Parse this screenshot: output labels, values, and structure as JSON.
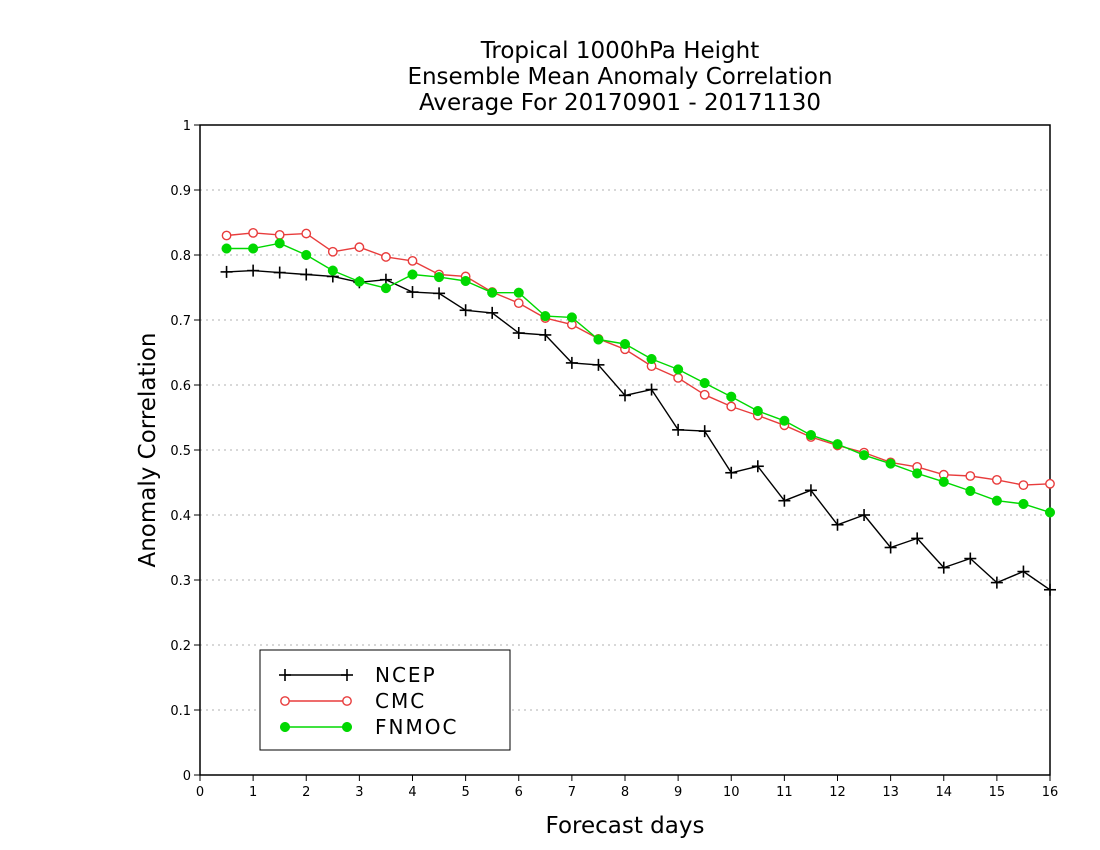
{
  "chart_data": {
    "type": "line",
    "title": [
      "Tropical 1000hPa Height",
      "Ensemble Mean Anomaly Correlation",
      "Average For 20170901 - 20171130"
    ],
    "xlabel": "Forecast days",
    "ylabel": "Anomaly Correlation",
    "xlim": [
      0,
      16
    ],
    "ylim": [
      0,
      1
    ],
    "x_ticks": [
      0,
      1,
      2,
      3,
      4,
      5,
      6,
      7,
      8,
      9,
      10,
      11,
      12,
      13,
      14,
      15,
      16
    ],
    "y_ticks": [
      0,
      0.1,
      0.2,
      0.3,
      0.4,
      0.5,
      0.6,
      0.7,
      0.8,
      0.9,
      1
    ],
    "y_tick_labels": [
      "0",
      "0.1",
      "0.2",
      "0.3",
      "0.4",
      "0.5",
      "0.6",
      "0.7",
      "0.8",
      "0.9",
      "1"
    ],
    "grid": "horizontal dotted",
    "legend_position": "bottom-left",
    "x": [
      0.5,
      1,
      1.5,
      2,
      2.5,
      3,
      3.5,
      4,
      4.5,
      5,
      5.5,
      6,
      6.5,
      7,
      7.5,
      8,
      8.5,
      9,
      9.5,
      10,
      10.5,
      11,
      11.5,
      12,
      12.5,
      13,
      13.5,
      14,
      14.5,
      15,
      15.5,
      16
    ],
    "series": [
      {
        "name": "NCEP",
        "color": "#000000",
        "marker": "plus",
        "values": [
          0.774,
          0.776,
          0.773,
          0.77,
          0.767,
          0.758,
          0.762,
          0.743,
          0.741,
          0.715,
          0.711,
          0.68,
          0.677,
          0.634,
          0.631,
          0.584,
          0.593,
          0.531,
          0.529,
          0.465,
          0.475,
          0.422,
          0.438,
          0.385,
          0.4,
          0.35,
          0.364,
          0.319,
          0.333,
          0.296,
          0.313,
          0.285
        ]
      },
      {
        "name": "CMC",
        "color": "#e83c3c",
        "marker": "open-circle",
        "values": [
          0.83,
          0.834,
          0.831,
          0.833,
          0.805,
          0.812,
          0.797,
          0.791,
          0.77,
          0.767,
          0.743,
          0.726,
          0.703,
          0.693,
          0.671,
          0.655,
          0.629,
          0.611,
          0.585,
          0.567,
          0.553,
          0.538,
          0.52,
          0.507,
          0.496,
          0.481,
          0.474,
          0.462,
          0.46,
          0.454,
          0.446,
          0.448
        ]
      },
      {
        "name": "FNMOC",
        "color": "#00d800",
        "marker": "filled-circle",
        "values": [
          0.81,
          0.81,
          0.818,
          0.8,
          0.776,
          0.759,
          0.749,
          0.77,
          0.766,
          0.76,
          0.742,
          0.742,
          0.706,
          0.704,
          0.67,
          0.663,
          0.64,
          0.624,
          0.603,
          0.582,
          0.56,
          0.545,
          0.523,
          0.509,
          0.492,
          0.479,
          0.464,
          0.451,
          0.437,
          0.422,
          0.417,
          0.404
        ]
      }
    ]
  }
}
